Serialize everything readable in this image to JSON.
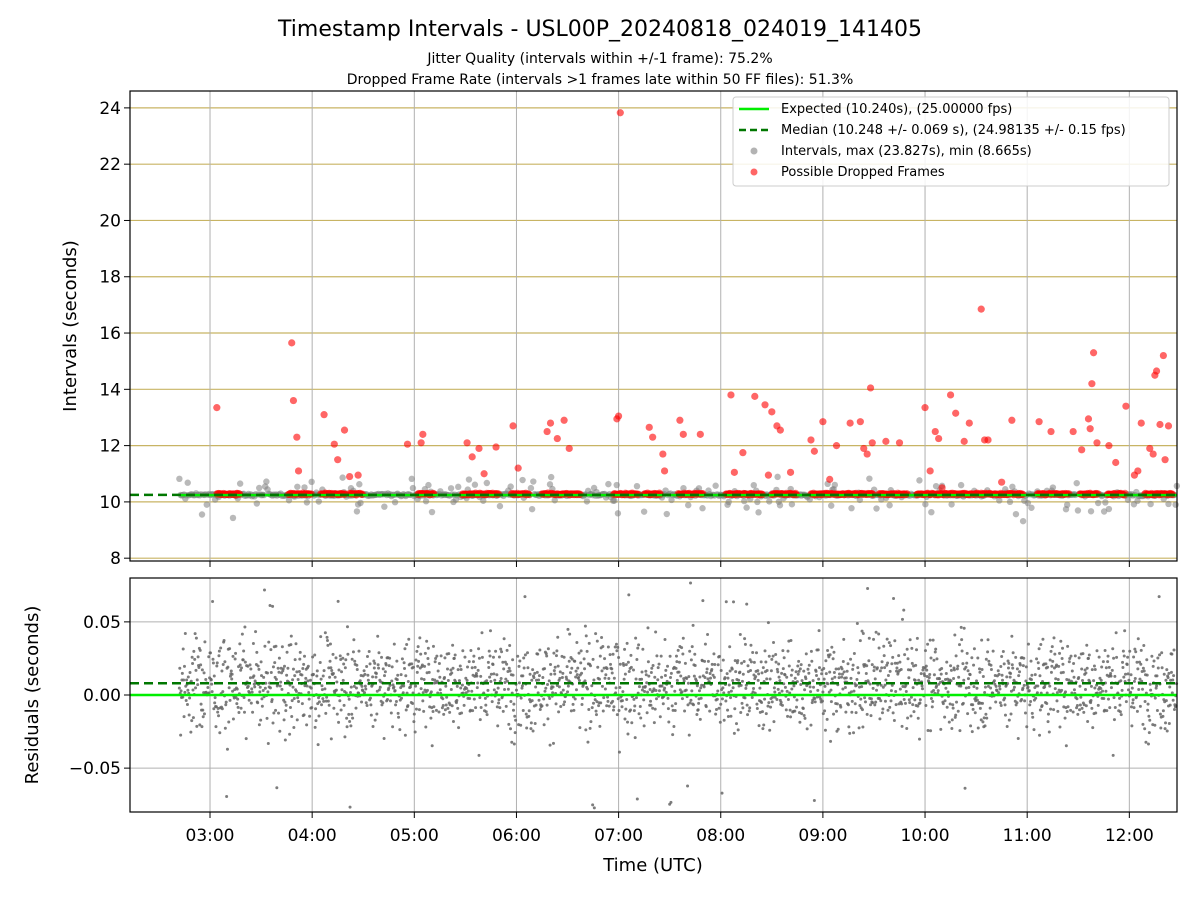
{
  "figure": {
    "title": "Timestamp Intervals - USL00P_20240818_024019_141405",
    "subtitle_line1": "Jitter Quality (intervals within +/-1 frame): 75.2%",
    "subtitle_line2": "Dropped Frame Rate (intervals >1 frames late within 50 FF files): 51.3%"
  },
  "colors": {
    "expected": "#00ee00",
    "median": "#007700",
    "intervals": "#808080",
    "dropped": "#ff0000",
    "grid_y_top": "#c8b464",
    "grid": "#b0b0b0"
  },
  "chart_data": [
    {
      "type": "scatter",
      "name": "intervals",
      "ylabel": "Intervals (seconds)",
      "xlim": [
        "02:13",
        "12:28"
      ],
      "ylim": [
        7.9,
        24.6
      ],
      "y_ticks": [
        8,
        10,
        12,
        14,
        16,
        18,
        20,
        22,
        24
      ],
      "x_ticks": [
        "03:00",
        "04:00",
        "05:00",
        "06:00",
        "07:00",
        "08:00",
        "09:00",
        "10:00",
        "11:00",
        "12:00"
      ],
      "grid": true,
      "legend_position": "top-right",
      "legend": [
        "Expected (10.240s), (25.00000 fps)",
        "Median (10.248 +/- 0.069 s), (24.98135 +/- 0.15 fps)",
        "Intervals, max (23.827s), min (8.665s)",
        "Possible Dropped Frames"
      ],
      "expected_interval": 10.24,
      "median_interval": 10.248,
      "max_interval": 23.827,
      "min_interval": 8.665,
      "series": [
        {
          "name": "Possible Dropped Frames",
          "points": [
            [
              "03:04",
              13.35
            ],
            [
              "03:48",
              15.65
            ],
            [
              "03:49",
              13.6
            ],
            [
              "03:51",
              12.3
            ],
            [
              "03:52",
              11.1
            ],
            [
              "04:07",
              13.1
            ],
            [
              "04:13",
              12.05
            ],
            [
              "04:15",
              11.5
            ],
            [
              "04:19",
              12.55
            ],
            [
              "04:22",
              10.9
            ],
            [
              "04:27",
              10.95
            ],
            [
              "04:56",
              12.05
            ],
            [
              "05:04",
              12.1
            ],
            [
              "05:05",
              12.4
            ],
            [
              "05:31",
              12.1
            ],
            [
              "05:34",
              11.6
            ],
            [
              "05:38",
              11.9
            ],
            [
              "05:41",
              11.0
            ],
            [
              "05:48",
              11.95
            ],
            [
              "05:58",
              12.7
            ],
            [
              "06:01",
              11.2
            ],
            [
              "06:18",
              12.5
            ],
            [
              "06:20",
              12.8
            ],
            [
              "06:24",
              12.25
            ],
            [
              "06:28",
              12.9
            ],
            [
              "06:31",
              11.9
            ],
            [
              "06:59",
              12.95
            ],
            [
              "07:00",
              13.05
            ],
            [
              "07:01",
              23.827
            ],
            [
              "07:18",
              12.65
            ],
            [
              "07:20",
              12.3
            ],
            [
              "07:26",
              11.7
            ],
            [
              "07:27",
              11.1
            ],
            [
              "07:36",
              12.9
            ],
            [
              "07:38",
              12.4
            ],
            [
              "07:48",
              12.4
            ],
            [
              "08:06",
              13.8
            ],
            [
              "08:08",
              11.05
            ],
            [
              "08:13",
              11.75
            ],
            [
              "08:20",
              13.75
            ],
            [
              "08:26",
              13.45
            ],
            [
              "08:28",
              10.95
            ],
            [
              "08:30",
              13.2
            ],
            [
              "08:33",
              12.7
            ],
            [
              "08:35",
              12.55
            ],
            [
              "08:41",
              11.05
            ],
            [
              "08:53",
              12.2
            ],
            [
              "08:55",
              11.8
            ],
            [
              "09:00",
              12.85
            ],
            [
              "09:04",
              10.8
            ],
            [
              "09:08",
              12.0
            ],
            [
              "09:16",
              12.8
            ],
            [
              "09:22",
              12.85
            ],
            [
              "09:24",
              11.9
            ],
            [
              "09:26",
              11.7
            ],
            [
              "09:28",
              14.05
            ],
            [
              "09:29",
              12.1
            ],
            [
              "09:37",
              12.15
            ],
            [
              "09:45",
              12.1
            ],
            [
              "10:00",
              13.35
            ],
            [
              "10:03",
              11.1
            ],
            [
              "10:06",
              12.5
            ],
            [
              "10:08",
              12.25
            ],
            [
              "10:10",
              10.5
            ],
            [
              "10:15",
              13.8
            ],
            [
              "10:18",
              13.15
            ],
            [
              "10:23",
              12.15
            ],
            [
              "10:26",
              12.8
            ],
            [
              "10:33",
              16.85
            ],
            [
              "10:35",
              12.2
            ],
            [
              "10:37",
              12.2
            ],
            [
              "10:45",
              10.7
            ],
            [
              "10:51",
              12.9
            ],
            [
              "11:07",
              12.85
            ],
            [
              "11:14",
              12.5
            ],
            [
              "11:27",
              12.5
            ],
            [
              "11:32",
              11.85
            ],
            [
              "11:36",
              12.95
            ],
            [
              "11:37",
              12.6
            ],
            [
              "11:38",
              14.2
            ],
            [
              "11:39",
              15.3
            ],
            [
              "11:41",
              12.1
            ],
            [
              "11:48",
              12.0
            ],
            [
              "11:52",
              11.4
            ],
            [
              "11:58",
              13.4
            ],
            [
              "12:03",
              10.95
            ],
            [
              "12:05",
              11.1
            ],
            [
              "12:07",
              12.8
            ],
            [
              "12:12",
              11.9
            ],
            [
              "12:14",
              11.7
            ],
            [
              "12:15",
              14.5
            ],
            [
              "12:16",
              14.65
            ],
            [
              "12:18",
              12.75
            ],
            [
              "12:20",
              15.2
            ],
            [
              "12:21",
              11.5
            ],
            [
              "12:23",
              12.7
            ]
          ]
        }
      ]
    },
    {
      "type": "scatter",
      "name": "residuals",
      "xlabel": "Time (UTC)",
      "ylabel": "Residuals (seconds)",
      "xlim": [
        "02:13",
        "12:28"
      ],
      "ylim": [
        -0.08,
        0.08
      ],
      "y_ticks": [
        0.05,
        0.0,
        -0.05
      ],
      "y_tick_labels": [
        "0.05",
        "0.00",
        "−0.05"
      ],
      "x_ticks": [
        "03:00",
        "04:00",
        "05:00",
        "06:00",
        "07:00",
        "08:00",
        "09:00",
        "10:00",
        "11:00",
        "12:00"
      ],
      "grid": true,
      "expected_residual": 0.0,
      "median_residual": 0.008
    }
  ]
}
